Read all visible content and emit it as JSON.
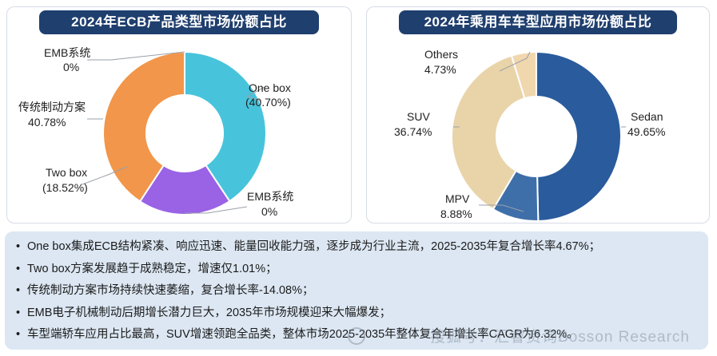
{
  "chart_data": [
    {
      "type": "pie",
      "title": "2024年ECB产品类型市场份额占比",
      "categories": [
        "One box",
        "EMB系统",
        "Two box",
        "传统制动方案"
      ],
      "values": [
        40.7,
        0,
        18.52,
        40.78
      ],
      "value_labels": [
        "(40.70%)",
        "0%",
        "(18.52%)",
        "40.78%"
      ],
      "colors": [
        "#47c4dc",
        "#9b8ec9",
        "#9a63e6",
        "#f1964a"
      ],
      "callouts": [
        {
          "name": "EMB系统",
          "value": "0%"
        }
      ],
      "legend": "none",
      "donut": true
    },
    {
      "type": "pie",
      "title": "2024年乘用车车型应用市场份额占比",
      "categories": [
        "Sedan",
        "MPV",
        "SUV",
        "Others"
      ],
      "values": [
        49.65,
        8.88,
        36.74,
        4.73
      ],
      "value_labels": [
        "49.65%",
        "8.88%",
        "36.74%",
        "4.73%"
      ],
      "colors": [
        "#2a5b9c",
        "#3f6fa9",
        "#e9d4a9",
        "#f0d7ae"
      ],
      "legend": "none",
      "donut": true
    }
  ],
  "notes": [
    "One box集成ECB结构紧凑、响应迅速、能量回收能力强，逐步成为行业主流，2025-2035年复合增长率4.67%；",
    "Two box方案发展趋于成熟稳定，增速仅1.01%；",
    "传统制动方案市场持续快速萎缩，复合增长率-14.08%；",
    "EMB电子机械制动后期增长潜力巨大，2035年市场规模迎来大幅爆发；",
    "车型端轿车应用占比最高，SUV增速领跑全品类，整体市场2025-2035年整体复合年增长率CAGR为6.32%。"
  ],
  "watermark": "搜狐号：汇睿资询Bosson Research"
}
